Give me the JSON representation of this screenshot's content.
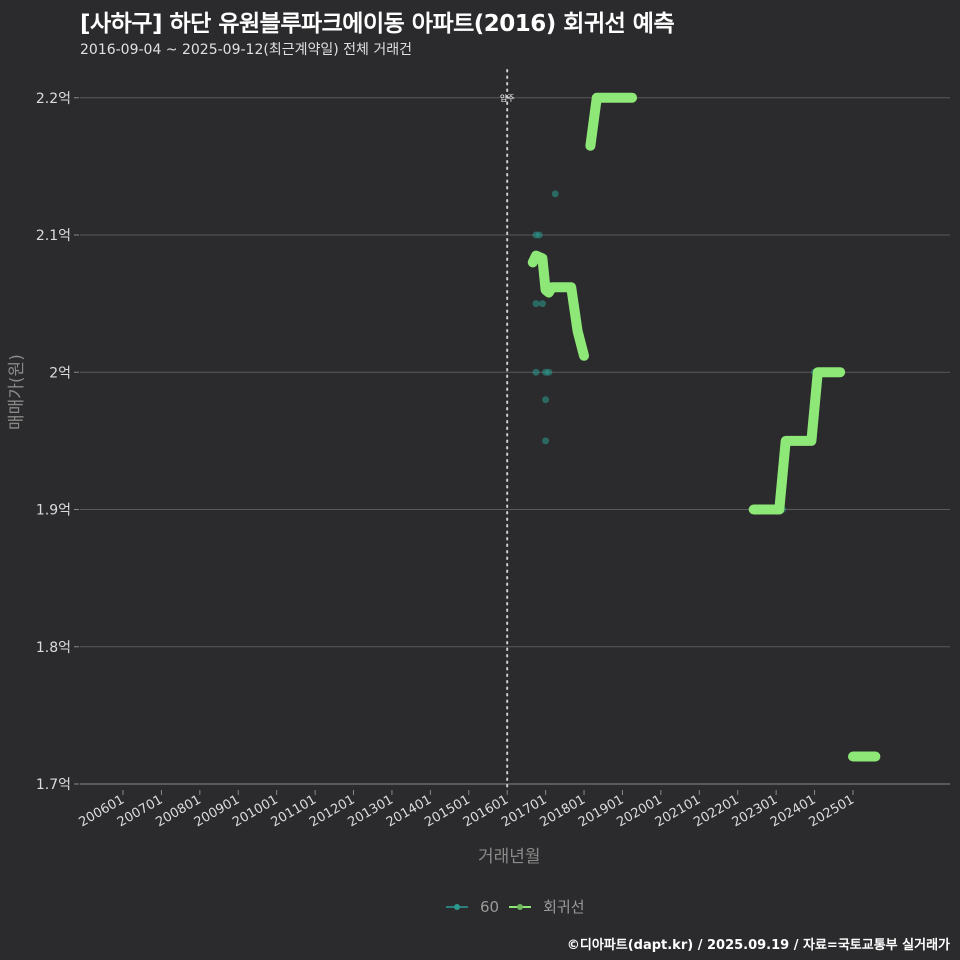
{
  "header": {
    "title": "[사하구] 하단 유원블루파크에이동 아파트(2016) 회귀선 예측",
    "subtitle": "2016-09-04 ~ 2025-09-12(최근계약일) 전체 거래건"
  },
  "axes": {
    "ylabel": "매매가(원)",
    "xlabel": "거래년월",
    "annotation": "입주"
  },
  "legend": {
    "items": [
      {
        "label": "60",
        "color": "#2a9a8f"
      },
      {
        "label": "회귀선",
        "color": "#8ee878"
      }
    ]
  },
  "footer": {
    "credit": "©디아파트(dapt.kr) / 2025.09.19 / 자료=국토교통부 실거래가"
  },
  "colors": {
    "background": "#2b2a2c",
    "grid": "#5a5a5a",
    "regression": "#8ee878",
    "scatter": "#2a9a8f"
  },
  "chart_data": {
    "type": "line",
    "title": "[사하구] 하단 유원블루파크에이동 아파트(2016) 회귀선 예측",
    "subtitle": "2016-09-04 ~ 2025-09-12(최근계약일) 전체 거래건",
    "xlabel": "거래년월",
    "ylabel": "매매가(원)",
    "ylim": [
      1.7,
      2.2
    ],
    "y_unit": "억",
    "yticks": [
      "1.7억",
      "1.8억",
      "1.9억",
      "2억",
      "2.1억",
      "2.2억"
    ],
    "xticks": [
      "200601",
      "200701",
      "200801",
      "200901",
      "201001",
      "201101",
      "201201",
      "201301",
      "201401",
      "201501",
      "201601",
      "201701",
      "201801",
      "201901",
      "202001",
      "202101",
      "202201",
      "202301",
      "202401",
      "202501"
    ],
    "grid": true,
    "legend_position": "bottom",
    "vline": {
      "x": "201601",
      "label": "입주",
      "style": "dotted"
    },
    "series": [
      {
        "name": "60",
        "type": "scatter",
        "points": [
          {
            "x": "2016-10",
            "y": 2.1
          },
          {
            "x": "2016-11",
            "y": 2.1
          },
          {
            "x": "2016-10",
            "y": 2.05
          },
          {
            "x": "2016-12",
            "y": 2.05
          },
          {
            "x": "2016-10",
            "y": 2.0
          },
          {
            "x": "2017-01",
            "y": 2.0
          },
          {
            "x": "2017-02",
            "y": 2.0
          },
          {
            "x": "2017-01",
            "y": 1.98
          },
          {
            "x": "2017-01",
            "y": 1.95
          },
          {
            "x": "2017-04",
            "y": 2.13
          },
          {
            "x": "2023-03",
            "y": 1.9
          },
          {
            "x": "2024-01",
            "y": 2.0
          }
        ]
      },
      {
        "name": "회귀선",
        "type": "line",
        "points": [
          {
            "x": "2016-09",
            "y": 2.08
          },
          {
            "x": "2016-10",
            "y": 2.085
          },
          {
            "x": "2016-12",
            "y": 2.083
          },
          {
            "x": "2017-01",
            "y": 2.06
          },
          {
            "x": "2017-02",
            "y": 2.058
          },
          {
            "x": "2017-03",
            "y": 2.062
          },
          {
            "x": "2017-09",
            "y": 2.062
          },
          {
            "x": "2017-11",
            "y": 2.03
          },
          {
            "x": "2018-01",
            "y": 2.012
          },
          {
            "x": "2018-03",
            "y": 2.165
          },
          {
            "x": "2018-05",
            "y": 2.2
          },
          {
            "x": "2019-04",
            "y": 2.2
          },
          {
            "x": "2022-06",
            "y": 1.9
          },
          {
            "x": "2023-02",
            "y": 1.9
          },
          {
            "x": "2023-04",
            "y": 1.95
          },
          {
            "x": "2023-12",
            "y": 1.95
          },
          {
            "x": "2024-02",
            "y": 2.0
          },
          {
            "x": "2024-09",
            "y": 2.0
          },
          {
            "x": "2025-01",
            "y": 1.72
          },
          {
            "x": "2025-08",
            "y": 1.72
          }
        ]
      }
    ]
  }
}
